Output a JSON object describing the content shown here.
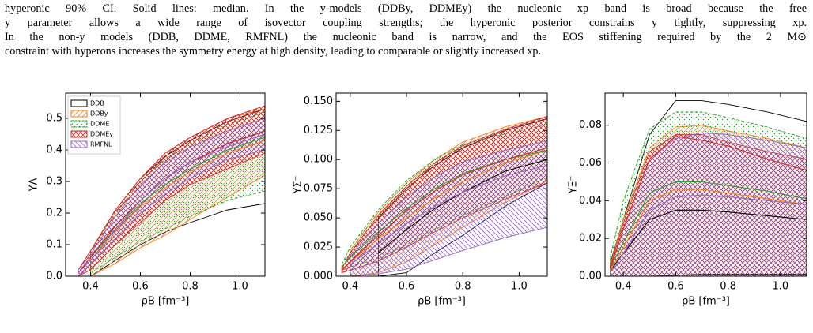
{
  "caption": [
    "hyperonic 90% CI. Solid lines: median. In the y-models (DDBy, DDMEy) the nucleonic xp band is broad because the free",
    "y parameter allows a wide range of isovector coupling strengths; the hyperonic posterior constrains y tightly, suppressing xp.",
    "In the non-y models (DDB, DDME, RMFNL) the nucleonic band is narrow, and the EOS stiffening required by the 2 M⊙",
    "constraint with hyperons increases the symmetry energy at high density, leading to comparable or slightly increased xp."
  ],
  "chart_data": [
    {
      "type": "band",
      "xlabel": "ρB [fm⁻³]",
      "ylabel": "YΛ",
      "legend": "upper left",
      "x": [
        0.35,
        0.4,
        0.5,
        0.6,
        0.7,
        0.8,
        0.95,
        1.1
      ],
      "xlim": [
        0.3,
        1.1
      ],
      "xticks": [
        0.4,
        0.6,
        0.8,
        {
          "value": 1.0,
          "label": "1.0"
        }
      ],
      "ylim": [
        0,
        0.58
      ],
      "yticks": [
        {
          "value": 0,
          "label": "0.0"
        },
        0.1,
        0.2,
        0.3,
        0.4,
        0.5
      ],
      "series": [
        {
          "name": "DDB",
          "color": "#000000",
          "hatch": "",
          "lower": [
            null,
            0,
            0.05,
            0.1,
            0.14,
            0.17,
            0.21,
            0.23
          ],
          "values": [
            null,
            0.06,
            0.16,
            0.24,
            0.31,
            0.36,
            0.42,
            0.46
          ],
          "upper": [
            null,
            0.08,
            0.21,
            0.31,
            0.38,
            0.43,
            0.49,
            0.53
          ]
        },
        {
          "name": "DDBy",
          "color": "#ff7f0e",
          "hatch": "/",
          "lower": [
            null,
            0,
            0.04,
            0.09,
            0.13,
            0.18,
            0.25,
            0.32
          ],
          "values": [
            null,
            0.05,
            0.14,
            0.22,
            0.28,
            0.33,
            0.39,
            0.43
          ],
          "upper": [
            null,
            0.08,
            0.21,
            0.31,
            0.39,
            0.44,
            0.5,
            0.53
          ]
        },
        {
          "name": "DDME",
          "color": "#2ca02c",
          "hatch": ".",
          "lower": [
            null,
            0.01,
            0.06,
            0.11,
            0.15,
            0.19,
            0.24,
            0.27
          ],
          "values": [
            null,
            0.06,
            0.15,
            0.23,
            0.29,
            0.34,
            0.4,
            0.44
          ],
          "upper": [
            null,
            0.08,
            0.2,
            0.3,
            0.37,
            0.42,
            0.48,
            0.52
          ]
        },
        {
          "name": "DDMEy",
          "color": "#d62728",
          "hatch": "x",
          "lower": [
            0,
            0.02,
            0.1,
            0.17,
            0.24,
            0.29,
            0.34,
            0.39
          ],
          "values": [
            0.01,
            0.06,
            0.16,
            0.24,
            0.31,
            0.36,
            0.42,
            0.46
          ],
          "upper": [
            0.02,
            0.08,
            0.21,
            0.31,
            0.39,
            0.44,
            0.5,
            0.54
          ]
        },
        {
          "name": "RMFNL",
          "color": "#9467bd",
          "hatch": "\\",
          "lower": [
            0,
            0.04,
            0.12,
            0.2,
            0.26,
            0.31,
            0.37,
            0.4
          ],
          "values": [
            0.01,
            0.05,
            0.15,
            0.24,
            0.31,
            0.36,
            0.41,
            0.45
          ],
          "upper": [
            0.02,
            0.07,
            0.19,
            0.29,
            0.36,
            0.41,
            0.46,
            0.5
          ]
        }
      ]
    },
    {
      "type": "band",
      "xlabel": "ρB [fm⁻³]",
      "ylabel": "YΣ⁻",
      "x": [
        0.37,
        0.4,
        0.5,
        0.6,
        0.7,
        0.8,
        0.95,
        1.1
      ],
      "xlim": [
        0.35,
        1.1
      ],
      "xticks": [
        0.4,
        0.6,
        0.8,
        {
          "value": 1.0,
          "label": "1.0"
        }
      ],
      "ylim": [
        0,
        0.157
      ],
      "yticks": [
        {
          "value": 0,
          "label": "0.000"
        },
        0.025,
        {
          "value": 0.05,
          "label": "0.050"
        },
        0.075,
        {
          "value": 0.1,
          "label": "0.100"
        },
        0.125,
        {
          "value": 0.15,
          "label": "0.150"
        }
      ],
      "series": [
        {
          "color": "#000000",
          "hatch": "",
          "lower": [
            null,
            null,
            0,
            0.003,
            0.02,
            0.035,
            0.06,
            0.08
          ],
          "values": [
            null,
            null,
            0.02,
            0.04,
            0.058,
            0.072,
            0.09,
            0.1
          ],
          "upper": [
            null,
            null,
            0.05,
            0.075,
            0.095,
            0.11,
            0.125,
            0.135
          ]
        },
        {
          "color": "#ff7f0e",
          "hatch": "/",
          "lower": [
            null,
            0,
            0.003,
            0.012,
            0.027,
            0.042,
            0.063,
            0.082
          ],
          "values": [
            null,
            0.012,
            0.032,
            0.05,
            0.067,
            0.081,
            0.097,
            0.108
          ],
          "upper": [
            null,
            0.022,
            0.055,
            0.08,
            0.1,
            0.115,
            0.128,
            0.137
          ]
        },
        {
          "color": "#2ca02c",
          "hatch": ".",
          "lower": [
            0.005,
            0.008,
            0.015,
            0.027,
            0.04,
            0.052,
            0.068,
            0.085
          ],
          "values": [
            0.008,
            0.016,
            0.038,
            0.058,
            0.075,
            0.088,
            0.1,
            0.108
          ],
          "upper": [
            0.01,
            0.025,
            0.057,
            0.082,
            0.1,
            0.113,
            0.122,
            0.13
          ]
        },
        {
          "color": "#d62728",
          "hatch": "x",
          "lower": [
            0.003,
            0.005,
            0.013,
            0.025,
            0.038,
            0.05,
            0.066,
            0.08
          ],
          "values": [
            0.005,
            0.012,
            0.035,
            0.056,
            0.073,
            0.087,
            0.1,
            0.11
          ],
          "upper": [
            0.006,
            0.02,
            0.052,
            0.077,
            0.097,
            0.112,
            0.126,
            0.137
          ]
        },
        {
          "color": "#9467bd",
          "hatch": "\\",
          "lower": [
            null,
            0,
            0.002,
            0.006,
            0.014,
            0.022,
            0.033,
            0.042
          ],
          "values": [
            null,
            0.01,
            0.028,
            0.045,
            0.06,
            0.072,
            0.086,
            0.095
          ],
          "upper": [
            null,
            0.018,
            0.045,
            0.068,
            0.085,
            0.098,
            0.108,
            0.116
          ]
        }
      ]
    },
    {
      "type": "band",
      "xlabel": "ρB [fm⁻³]",
      "ylabel": "YΞ⁻",
      "x": [
        0.35,
        0.4,
        0.5,
        0.6,
        0.7,
        0.8,
        0.95,
        1.1
      ],
      "xlim": [
        0.33,
        1.1
      ],
      "xticks": [
        0.4,
        0.6,
        0.8,
        {
          "value": 1.0,
          "label": "1.0"
        }
      ],
      "ylim": [
        0,
        0.097
      ],
      "yticks": [
        {
          "value": 0,
          "label": "0.00"
        },
        0.02,
        0.04,
        0.06,
        0.08
      ],
      "series": [
        {
          "color": "#000000",
          "hatch": "",
          "lower": [
            0,
            0,
            0,
            0.0005,
            0.001,
            0.001,
            0.001,
            0.001
          ],
          "values": [
            0.003,
            0.012,
            0.03,
            0.035,
            0.035,
            0.034,
            0.032,
            0.03
          ],
          "upper": [
            0.007,
            0.03,
            0.075,
            0.093,
            0.093,
            0.091,
            0.087,
            0.082
          ]
        },
        {
          "color": "#ff7f0e",
          "hatch": "/",
          "lower": [
            0,
            0,
            0,
            0,
            0,
            0,
            0,
            0
          ],
          "values": [
            0.003,
            0.015,
            0.04,
            0.046,
            0.046,
            0.044,
            0.041,
            0.038
          ],
          "upper": [
            0.006,
            0.03,
            0.068,
            0.079,
            0.08,
            0.077,
            0.073,
            0.068
          ]
        },
        {
          "color": "#2ca02c",
          "hatch": ".",
          "lower": [
            0,
            0,
            0,
            0,
            0,
            0,
            0,
            0
          ],
          "values": [
            0.004,
            0.018,
            0.044,
            0.05,
            0.05,
            0.048,
            0.045,
            0.041
          ],
          "upper": [
            0.01,
            0.04,
            0.078,
            0.087,
            0.087,
            0.084,
            0.079,
            0.073
          ]
        },
        {
          "color": "#d62728",
          "hatch": "x",
          "lower": [
            0,
            0,
            0,
            0,
            0,
            0,
            0,
            0
          ],
          "values": [
            0.004,
            0.025,
            0.062,
            0.074,
            0.072,
            0.069,
            0.062,
            0.056
          ],
          "upper": [
            0.005,
            0.028,
            0.066,
            0.075,
            0.075,
            0.071,
            0.066,
            0.062
          ]
        },
        {
          "color": "#9467bd",
          "hatch": "\\",
          "lower": [
            0,
            0,
            0,
            0,
            0,
            0,
            0,
            0
          ],
          "values": [
            0.002,
            0.012,
            0.035,
            0.042,
            0.043,
            0.042,
            0.04,
            0.038
          ],
          "upper": [
            0.004,
            0.025,
            0.062,
            0.073,
            0.076,
            0.075,
            0.072,
            0.068
          ]
        }
      ]
    }
  ]
}
